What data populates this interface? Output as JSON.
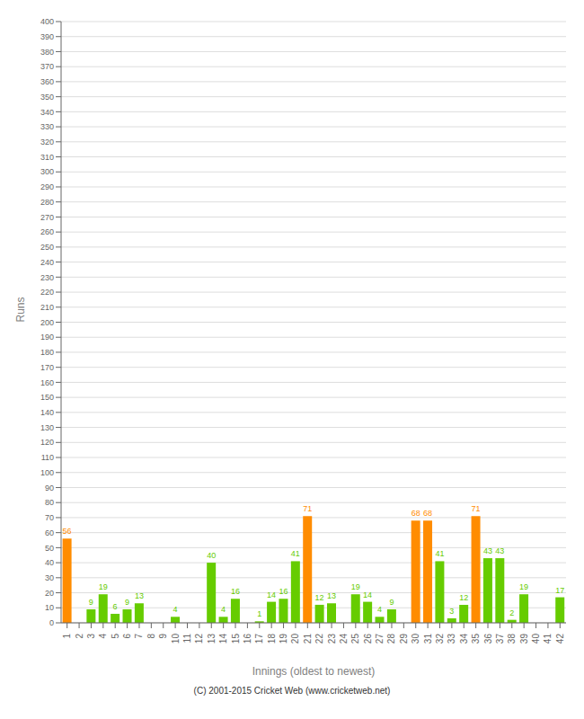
{
  "chart_data": {
    "type": "bar",
    "xlabel": "Innings (oldest to newest)",
    "ylabel": "Runs",
    "annotations": [
      "(C) 2001-2015 Cricket Web (www.cricketweb.net)"
    ],
    "categories": [
      1,
      2,
      3,
      4,
      5,
      6,
      7,
      8,
      9,
      10,
      11,
      12,
      13,
      14,
      15,
      16,
      17,
      18,
      19,
      20,
      21,
      22,
      23,
      24,
      25,
      26,
      27,
      28,
      29,
      30,
      31,
      32,
      33,
      34,
      35,
      36,
      37,
      38,
      39,
      40,
      41,
      42
    ],
    "values": [
      56,
      0,
      9,
      19,
      6,
      9,
      13,
      0,
      0,
      4,
      0,
      0,
      40,
      4,
      16,
      0,
      1,
      14,
      16,
      41,
      71,
      12,
      13,
      0,
      19,
      14,
      4,
      9,
      0,
      68,
      68,
      41,
      3,
      12,
      71,
      43,
      43,
      2,
      19,
      0,
      0,
      17
    ],
    "colors": [
      "#ff8c00",
      "#66cc00",
      "#66cc00",
      "#66cc00",
      "#66cc00",
      "#66cc00",
      "#66cc00",
      "#66cc00",
      "#66cc00",
      "#66cc00",
      "#66cc00",
      "#66cc00",
      "#66cc00",
      "#66cc00",
      "#66cc00",
      "#66cc00",
      "#66cc00",
      "#66cc00",
      "#66cc00",
      "#66cc00",
      "#ff8c00",
      "#66cc00",
      "#66cc00",
      "#66cc00",
      "#66cc00",
      "#66cc00",
      "#66cc00",
      "#66cc00",
      "#66cc00",
      "#ff8c00",
      "#ff8c00",
      "#66cc00",
      "#66cc00",
      "#66cc00",
      "#ff8c00",
      "#66cc00",
      "#66cc00",
      "#66cc00",
      "#66cc00",
      "#66cc00",
      "#66cc00",
      "#66cc00"
    ],
    "ylim": [
      0,
      400
    ],
    "yticks": [
      0,
      10,
      20,
      30,
      40,
      50,
      60,
      70,
      80,
      90,
      100,
      110,
      120,
      130,
      140,
      150,
      160,
      170,
      180,
      190,
      200,
      210,
      220,
      230,
      240,
      250,
      260,
      270,
      280,
      290,
      300,
      310,
      320,
      330,
      340,
      350,
      360,
      370,
      380,
      390,
      400
    ],
    "grid": true,
    "data_labels": true
  }
}
